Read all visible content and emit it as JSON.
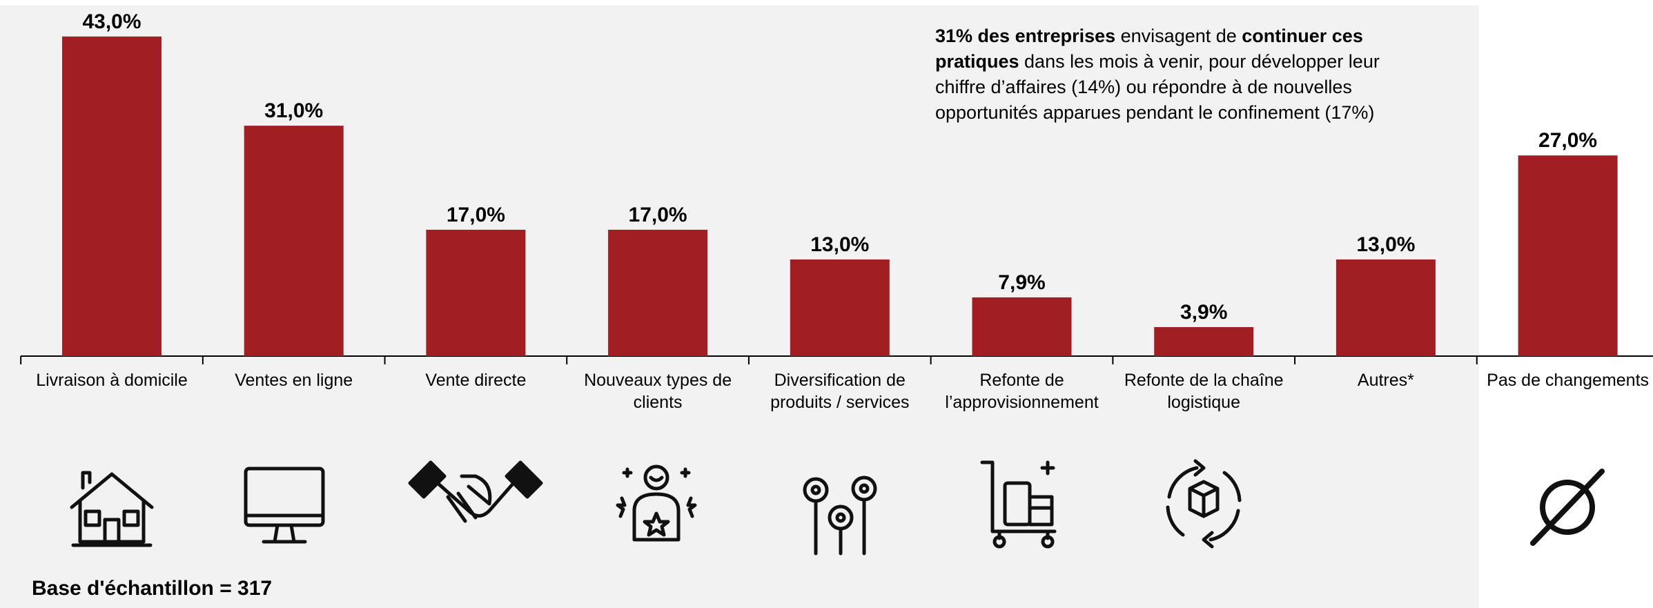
{
  "chart_data": {
    "type": "bar",
    "categories": [
      "Livraison à domicile",
      "Ventes en ligne",
      "Vente directe",
      "Nouveaux types de clients",
      "Diversification de produits / services",
      "Refonte de l’approvisionnement",
      "Refonte de la chaîne logistique",
      "Autres*",
      "Pas de changements"
    ],
    "values": [
      43,
      31,
      17,
      17,
      13,
      7.9,
      3.9,
      13,
      27
    ],
    "value_labels": [
      "43,0%",
      "31,0%",
      "17,0%",
      "17,0%",
      "13,0%",
      "7,9%",
      "3,9%",
      "13,0%",
      "27,0%"
    ],
    "color": "#a11f22",
    "annotation": [
      {
        "text": "31% des entreprises",
        "bold": true
      },
      {
        "text": " envisagent de ",
        "bold": false
      },
      {
        "text": "continuer ces pratiques",
        "bold": true
      },
      {
        "text": " dans les mois à venir, pour développer leur chiffre d’affaires (14%) ou répondre à de nouvelles opportunités apparues pendant le confinement (17%)",
        "bold": false
      }
    ],
    "footnote": "Base d'échantillon = 317"
  }
}
